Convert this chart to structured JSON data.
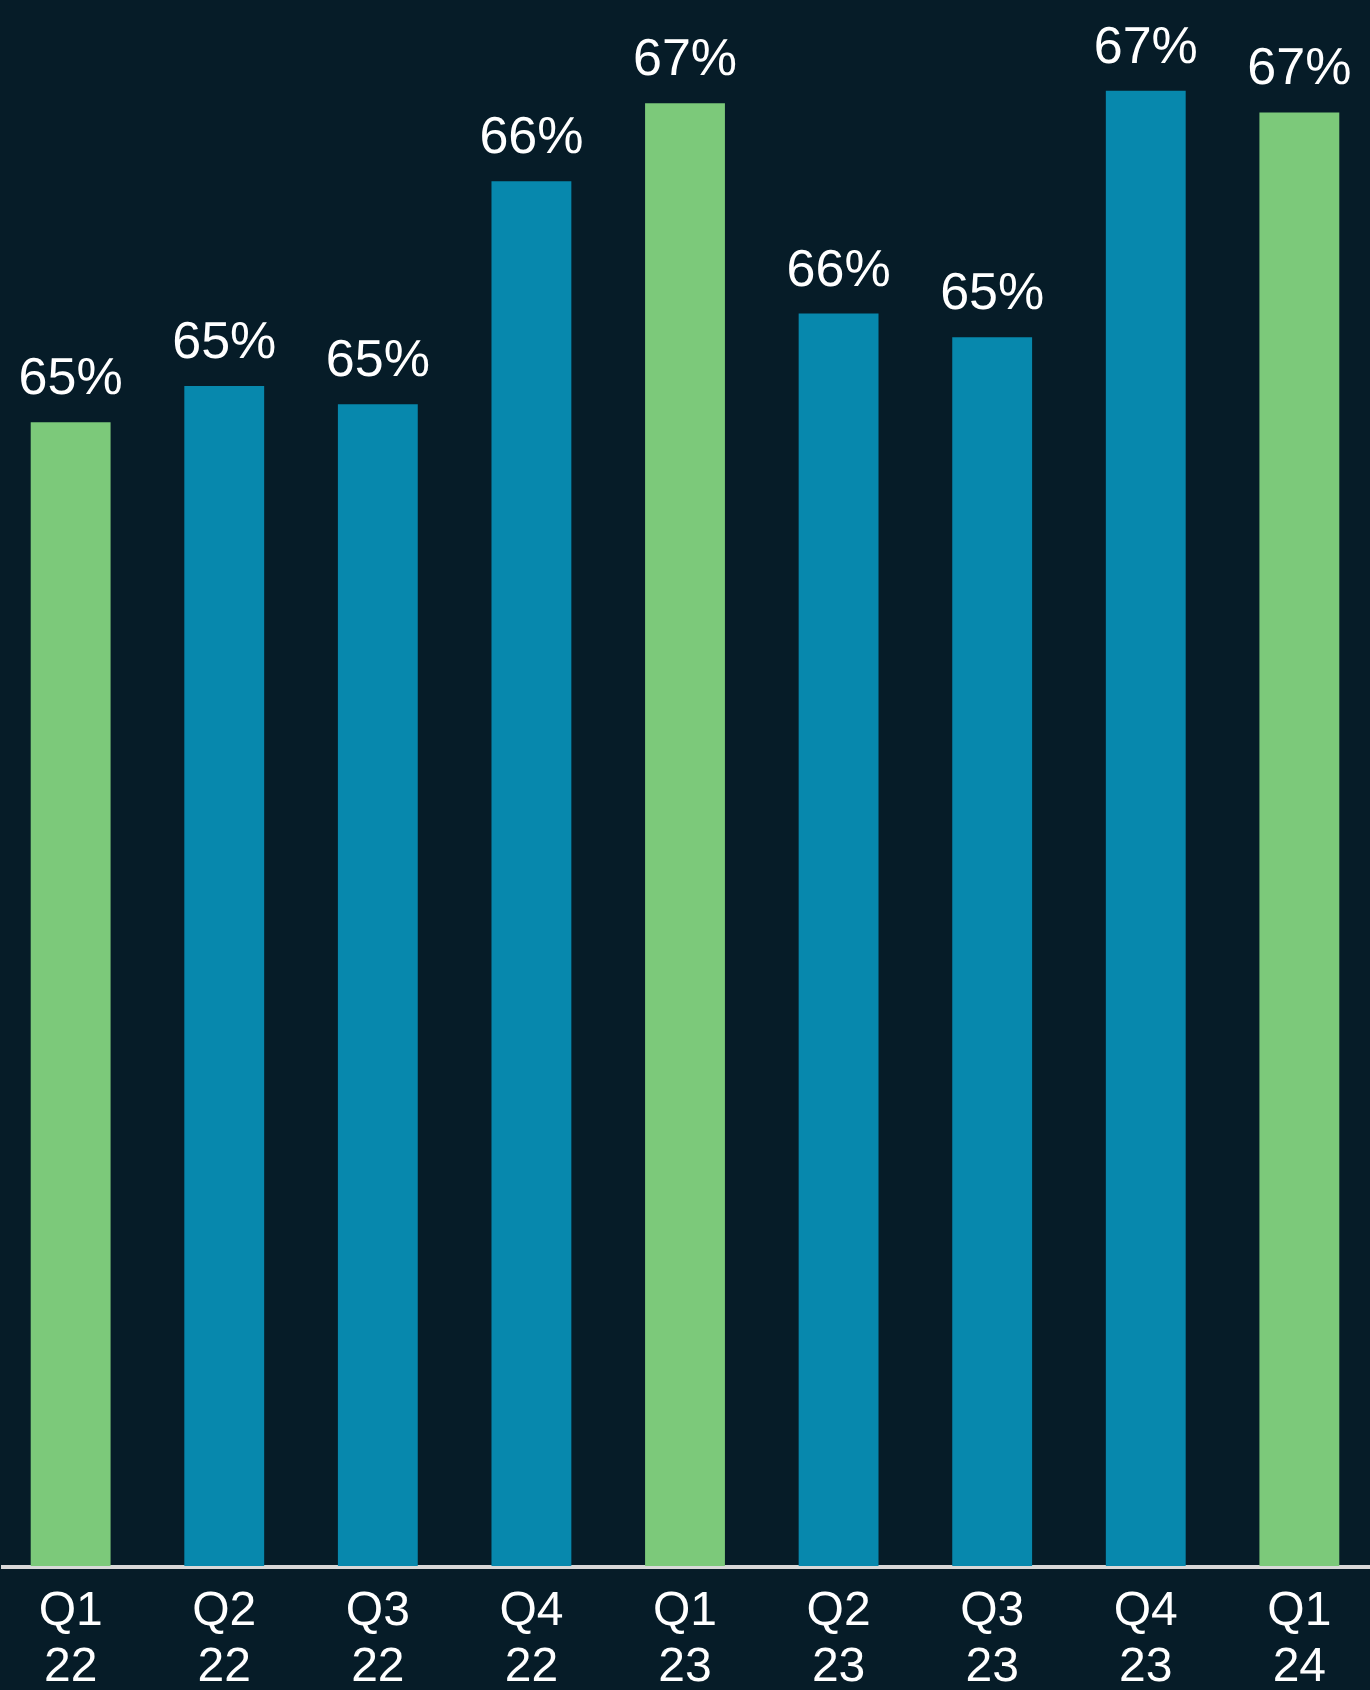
{
  "chart_data": {
    "type": "bar",
    "categories": [
      "Q1 22",
      "Q2 22",
      "Q3 22",
      "Q4 22",
      "Q1 23",
      "Q2 23",
      "Q3 23",
      "Q4 23",
      "Q1 24"
    ],
    "values": [
      64.97,
      65.17,
      65.07,
      66.3,
      66.73,
      65.57,
      65.44,
      66.8,
      66.68
    ],
    "value_labels": [
      "65%",
      "65%",
      "65%",
      "66%",
      "67%",
      "66%",
      "65%",
      "67%",
      "67%"
    ],
    "colors": [
      "#7cc97a",
      "#0788ad",
      "#0788ad",
      "#0788ad",
      "#7cc97a",
      "#0788ad",
      "#0788ad",
      "#0788ad",
      "#7cc97a"
    ],
    "ylim": [
      58.66,
      67.3
    ],
    "grid": false
  }
}
